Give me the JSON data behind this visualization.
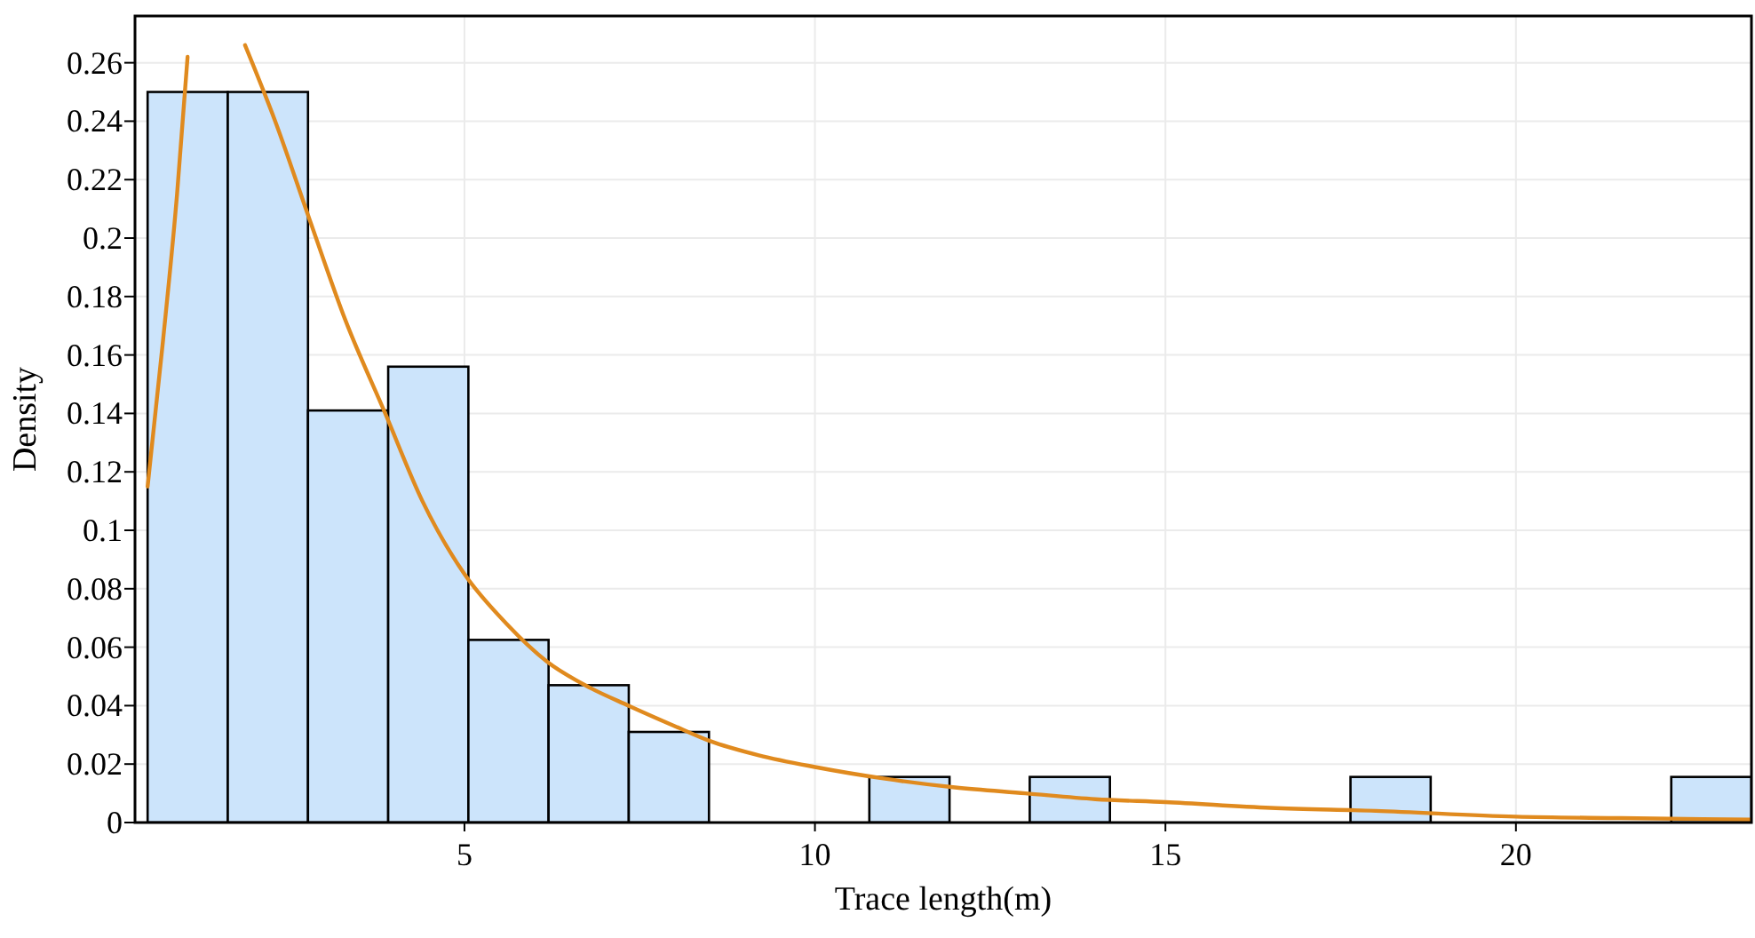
{
  "chart_data": {
    "type": "histogram",
    "xlabel": "Trace length(m)",
    "ylabel": "Density",
    "bins": [
      0.48,
      1.624,
      2.768,
      3.912,
      5.056,
      6.2,
      7.344,
      8.488,
      9.632,
      10.776,
      11.92,
      13.064,
      14.208,
      15.352,
      16.496,
      17.64,
      18.784,
      19.928,
      21.072,
      22.216,
      23.36
    ],
    "values": [
      0.25,
      0.25,
      0.141,
      0.156,
      0.0625,
      0.047,
      0.031,
      0,
      0,
      0.0156,
      0,
      0.0156,
      0,
      0,
      0,
      0.0156,
      0,
      0,
      0,
      0.0156
    ],
    "color": "#cce4fb",
    "series": [
      {
        "type": "line",
        "color": "#e08a1e",
        "x": [
          0.48,
          0.7,
          0.9,
          1.05,
          1.45,
          1.87,
          2.3,
          2.81,
          3.3,
          3.87,
          4.4,
          5.0,
          5.6,
          6.18,
          6.8,
          7.34,
          8.0,
          8.49,
          9.2,
          10,
          11,
          12,
          13,
          14,
          15,
          16.5,
          18,
          20,
          21.5,
          23.36
        ],
        "values": [
          0.115,
          0.165,
          0.215,
          0.262,
          null,
          0.266,
          0.24,
          0.205,
          0.172,
          0.14,
          0.11,
          0.085,
          0.068,
          0.055,
          0.046,
          0.04,
          0.033,
          0.028,
          0.023,
          0.019,
          0.015,
          0.012,
          0.01,
          0.008,
          0.007,
          0.005,
          0.004,
          0.002,
          0.0015,
          0.001
        ]
      }
    ],
    "xlim": [
      0.3,
      23.36
    ],
    "ylim": [
      0,
      0.276
    ],
    "xticks": [
      5,
      10,
      15,
      20
    ],
    "yticks": [
      0,
      0.02,
      0.04,
      0.06,
      0.08,
      {
        "value": 0.1,
        "label": "0.1"
      },
      0.12,
      0.14,
      0.16,
      0.18,
      {
        "value": 0.2,
        "label": "0.2"
      },
      0.22,
      0.24,
      0.26
    ],
    "grid": true
  }
}
